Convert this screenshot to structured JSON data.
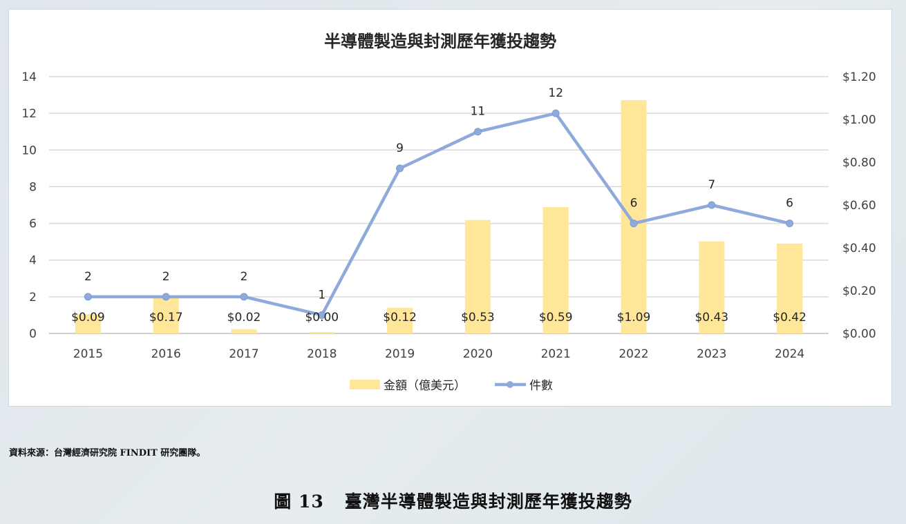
{
  "chart_data": {
    "type": "bar+line",
    "title": "半導體製造與封測歷年獲投趨勢",
    "categories": [
      "2015",
      "2016",
      "2017",
      "2018",
      "2019",
      "2020",
      "2021",
      "2022",
      "2023",
      "2024"
    ],
    "series": [
      {
        "name": "金額（億美元）",
        "type": "bar",
        "axis": "right",
        "values": [
          0.09,
          0.17,
          0.02,
          0.0,
          0.12,
          0.53,
          0.59,
          1.09,
          0.43,
          0.42
        ],
        "labels": [
          "$0.09",
          "$0.17",
          "$0.02",
          "$0.00",
          "$0.12",
          "$0.53",
          "$0.59",
          "$1.09",
          "$0.43",
          "$0.42"
        ],
        "color": "#ffe699"
      },
      {
        "name": "件數",
        "type": "line",
        "axis": "left",
        "values": [
          2,
          2,
          2,
          1,
          9,
          11,
          12,
          6,
          7,
          6
        ],
        "color": "#8eaadb"
      }
    ],
    "y_left": {
      "range": [
        0,
        14
      ],
      "ticks": [
        "0",
        "2",
        "4",
        "6",
        "8",
        "10",
        "12",
        "14"
      ]
    },
    "y_right": {
      "range": [
        0,
        1.2
      ],
      "ticks": [
        "$0.00",
        "$0.20",
        "$0.40",
        "$0.60",
        "$0.80",
        "$1.00",
        "$1.20"
      ]
    },
    "grid": true,
    "legend": "bottom"
  },
  "source_note": "資料來源：台灣經濟研究院 FINDIT 研究團隊。",
  "figure_caption": {
    "number": "圖 13",
    "text": "臺灣半導體製造與封測歷年獲投趨勢"
  }
}
